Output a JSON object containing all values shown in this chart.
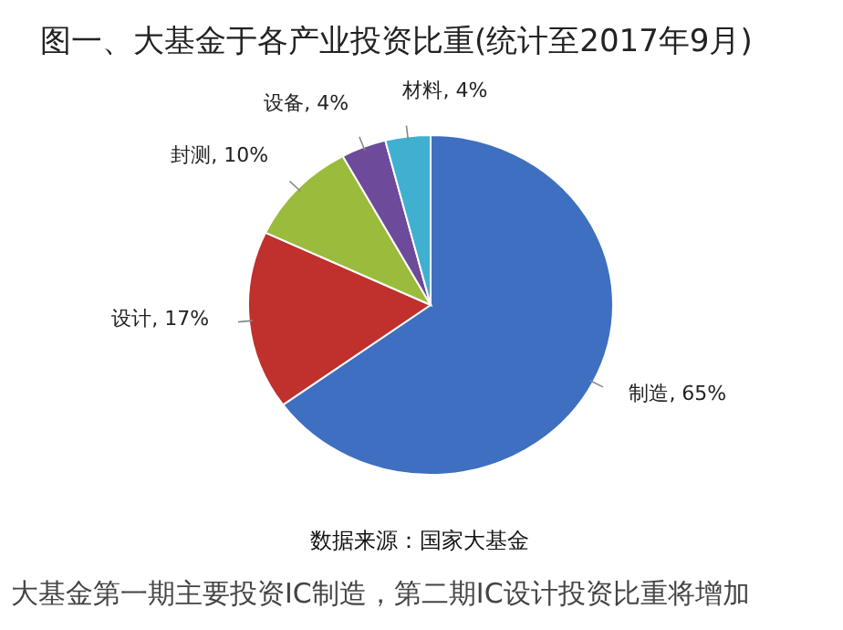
{
  "chart_data": {
    "type": "pie",
    "title": "图一、大基金于各产业投资比重(统计至2017年9月)",
    "categories": [
      "制造",
      "设计",
      "封测",
      "设备",
      "材料"
    ],
    "values": [
      65,
      17,
      10,
      4,
      4
    ],
    "value_labels": [
      "65%",
      "17%",
      "10%",
      "4%",
      "4%"
    ],
    "colors": [
      "#3e6fc0",
      "#c0302c",
      "#9bbb3c",
      "#6e4a9a",
      "#3fb0d0"
    ],
    "annotations": [
      "数据来源：国家大基金",
      "大基金第一期主要投资IC制造，第二期IC设计投资比重将增加"
    ]
  }
}
